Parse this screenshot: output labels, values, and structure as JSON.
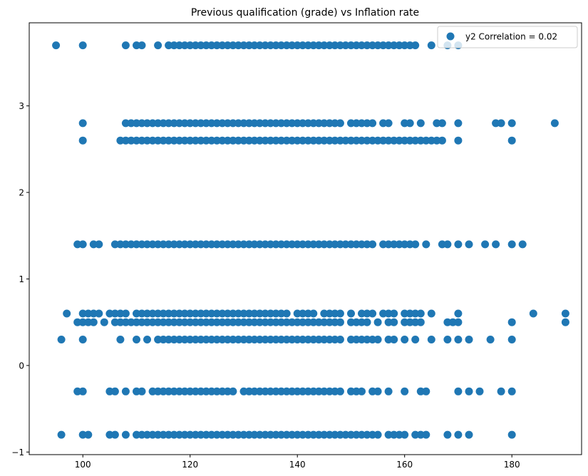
{
  "chart_data": {
    "type": "scatter",
    "title": "Previous qualification (grade) vs Inflation rate",
    "xlabel": "",
    "ylabel": "",
    "xlim": [
      90,
      193
    ],
    "ylim": [
      -1.03,
      3.96
    ],
    "x_ticks": [
      100,
      120,
      140,
      160,
      180
    ],
    "y_ticks": [
      -1,
      0,
      1,
      2,
      3
    ],
    "grid": false,
    "legend": {
      "position": "top-right",
      "entries": [
        "y2 Correlation = 0.02"
      ]
    },
    "marker_color": "#1f77b4",
    "series": [
      {
        "name": "y2 Correlation = 0.02",
        "x_ranges": [
          {
            "y": 3.7,
            "x": [
              95,
              100,
              108,
              110,
              111,
              114,
              116,
              117,
              118,
              119,
              120,
              121,
              122,
              123,
              124,
              125,
              126,
              127,
              128,
              129,
              130,
              131,
              132,
              133,
              134,
              135,
              136,
              137,
              138,
              139,
              140,
              141,
              142,
              143,
              144,
              145,
              146,
              147,
              148,
              149,
              150,
              151,
              152,
              153,
              154,
              155,
              156,
              157,
              158,
              159,
              160,
              161,
              162,
              165,
              168,
              170
            ]
          },
          {
            "y": 2.8,
            "x": [
              100,
              108,
              109,
              110,
              111,
              112,
              113,
              114,
              115,
              116,
              117,
              118,
              119,
              120,
              121,
              122,
              123,
              124,
              125,
              126,
              127,
              128,
              129,
              130,
              131,
              132,
              133,
              134,
              135,
              136,
              137,
              138,
              139,
              140,
              141,
              142,
              143,
              144,
              145,
              146,
              147,
              148,
              150,
              151,
              152,
              153,
              154,
              156,
              157,
              160,
              161,
              163,
              166,
              167,
              170,
              177,
              178,
              180,
              188
            ]
          },
          {
            "y": 2.6,
            "x": [
              100,
              107,
              108,
              109,
              110,
              111,
              112,
              113,
              114,
              115,
              116,
              117,
              118,
              119,
              120,
              121,
              122,
              123,
              124,
              125,
              126,
              127,
              128,
              129,
              130,
              131,
              132,
              133,
              134,
              135,
              136,
              137,
              138,
              139,
              140,
              141,
              142,
              143,
              144,
              145,
              146,
              147,
              148,
              149,
              150,
              151,
              152,
              153,
              154,
              155,
              156,
              157,
              158,
              159,
              160,
              161,
              162,
              163,
              164,
              165,
              166,
              167,
              170,
              180
            ]
          },
          {
            "y": 1.4,
            "x": [
              99,
              100,
              102,
              103,
              106,
              107,
              108,
              109,
              110,
              111,
              112,
              113,
              114,
              115,
              116,
              117,
              118,
              119,
              120,
              121,
              122,
              123,
              124,
              125,
              126,
              127,
              128,
              129,
              130,
              131,
              132,
              133,
              134,
              135,
              136,
              137,
              138,
              139,
              140,
              141,
              142,
              143,
              144,
              145,
              146,
              147,
              148,
              149,
              150,
              151,
              152,
              153,
              154,
              156,
              157,
              158,
              159,
              160,
              161,
              162,
              164,
              167,
              168,
              170,
              172,
              175,
              177,
              180,
              182
            ]
          },
          {
            "y": 0.6,
            "x": [
              97,
              100,
              101,
              102,
              103,
              105,
              106,
              107,
              108,
              110,
              111,
              112,
              113,
              114,
              115,
              116,
              117,
              118,
              119,
              120,
              121,
              122,
              123,
              124,
              125,
              126,
              127,
              128,
              129,
              130,
              131,
              132,
              133,
              134,
              135,
              136,
              137,
              138,
              140,
              141,
              142,
              143,
              145,
              146,
              147,
              148,
              150,
              152,
              153,
              154,
              156,
              157,
              158,
              160,
              161,
              162,
              163,
              165,
              170,
              184,
              190
            ]
          },
          {
            "y": 0.5,
            "x": [
              99,
              100,
              101,
              102,
              104,
              106,
              107,
              108,
              109,
              110,
              111,
              112,
              113,
              114,
              115,
              116,
              117,
              118,
              119,
              120,
              121,
              122,
              123,
              124,
              125,
              126,
              127,
              128,
              129,
              130,
              131,
              132,
              133,
              134,
              135,
              136,
              137,
              138,
              139,
              140,
              141,
              142,
              143,
              144,
              145,
              146,
              147,
              148,
              150,
              151,
              152,
              153,
              155,
              157,
              158,
              160,
              161,
              162,
              163,
              168,
              169,
              170,
              180,
              190
            ]
          },
          {
            "y": 0.3,
            "x": [
              96,
              100,
              107,
              110,
              112,
              114,
              115,
              116,
              117,
              118,
              119,
              120,
              121,
              122,
              123,
              124,
              125,
              126,
              127,
              128,
              129,
              130,
              131,
              132,
              133,
              134,
              135,
              136,
              137,
              138,
              139,
              140,
              141,
              142,
              143,
              144,
              145,
              146,
              147,
              148,
              150,
              151,
              152,
              153,
              154,
              155,
              157,
              158,
              160,
              162,
              165,
              168,
              170,
              172,
              176,
              180
            ]
          },
          {
            "y": -0.3,
            "x": [
              99,
              100,
              105,
              106,
              108,
              110,
              111,
              113,
              114,
              115,
              116,
              117,
              118,
              119,
              120,
              121,
              122,
              123,
              124,
              125,
              126,
              127,
              128,
              130,
              131,
              132,
              133,
              134,
              135,
              136,
              137,
              138,
              139,
              140,
              141,
              142,
              143,
              144,
              145,
              146,
              147,
              148,
              150,
              151,
              152,
              154,
              155,
              157,
              160,
              163,
              164,
              170,
              172,
              174,
              178,
              180
            ]
          },
          {
            "y": -0.8,
            "x": [
              96,
              100,
              101,
              105,
              106,
              108,
              110,
              111,
              112,
              113,
              114,
              115,
              116,
              117,
              118,
              119,
              120,
              121,
              122,
              123,
              124,
              125,
              126,
              127,
              128,
              129,
              130,
              131,
              132,
              133,
              134,
              135,
              136,
              137,
              138,
              139,
              140,
              141,
              142,
              143,
              144,
              145,
              146,
              147,
              148,
              149,
              150,
              151,
              152,
              153,
              154,
              155,
              157,
              158,
              159,
              160,
              162,
              163,
              164,
              168,
              170,
              172,
              180
            ]
          }
        ]
      }
    ]
  }
}
